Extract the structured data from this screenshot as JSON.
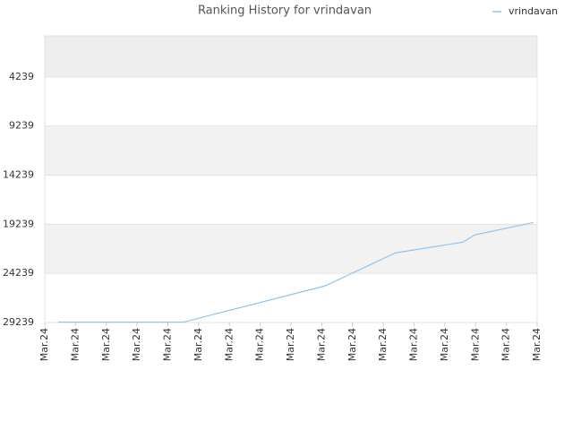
{
  "chart_data": {
    "type": "line",
    "title": "Ranking History for vrindavan",
    "xlim": [
      0,
      16
    ],
    "xticks": [
      {
        "value": 0,
        "label": "Mar.24"
      },
      {
        "value": 1,
        "label": "Mar.24"
      },
      {
        "value": 2,
        "label": "Mar.24"
      },
      {
        "value": 3,
        "label": "Mar.24"
      },
      {
        "value": 4,
        "label": "Mar.24"
      },
      {
        "value": 5,
        "label": "Mar.24"
      },
      {
        "value": 6,
        "label": "Mar.24"
      },
      {
        "value": 7,
        "label": "Mar.24"
      },
      {
        "value": 8,
        "label": "Mar.24"
      },
      {
        "value": 9,
        "label": "Mar.24"
      },
      {
        "value": 10,
        "label": "Mar.24"
      },
      {
        "value": 11,
        "label": "Mar.24"
      },
      {
        "value": 12,
        "label": "Mar.24"
      },
      {
        "value": 13,
        "label": "Mar.24"
      },
      {
        "value": 14,
        "label": "Mar.24"
      },
      {
        "value": 15,
        "label": "Mar.24"
      },
      {
        "value": 16,
        "label": "Mar.24"
      }
    ],
    "ylim": [
      29239,
      57
    ],
    "yticks": [
      4239,
      9239,
      14239,
      19239,
      24239,
      29239
    ],
    "series": [
      {
        "name": "vrindavan",
        "color": "#90c4ee",
        "x": [
          0.44,
          4.51,
          9.11,
          11.4,
          13.59,
          13.96,
          15.88
        ],
        "values": [
          29200,
          29200,
          25512,
          22148,
          21057,
          20330,
          19057
        ]
      }
    ]
  }
}
